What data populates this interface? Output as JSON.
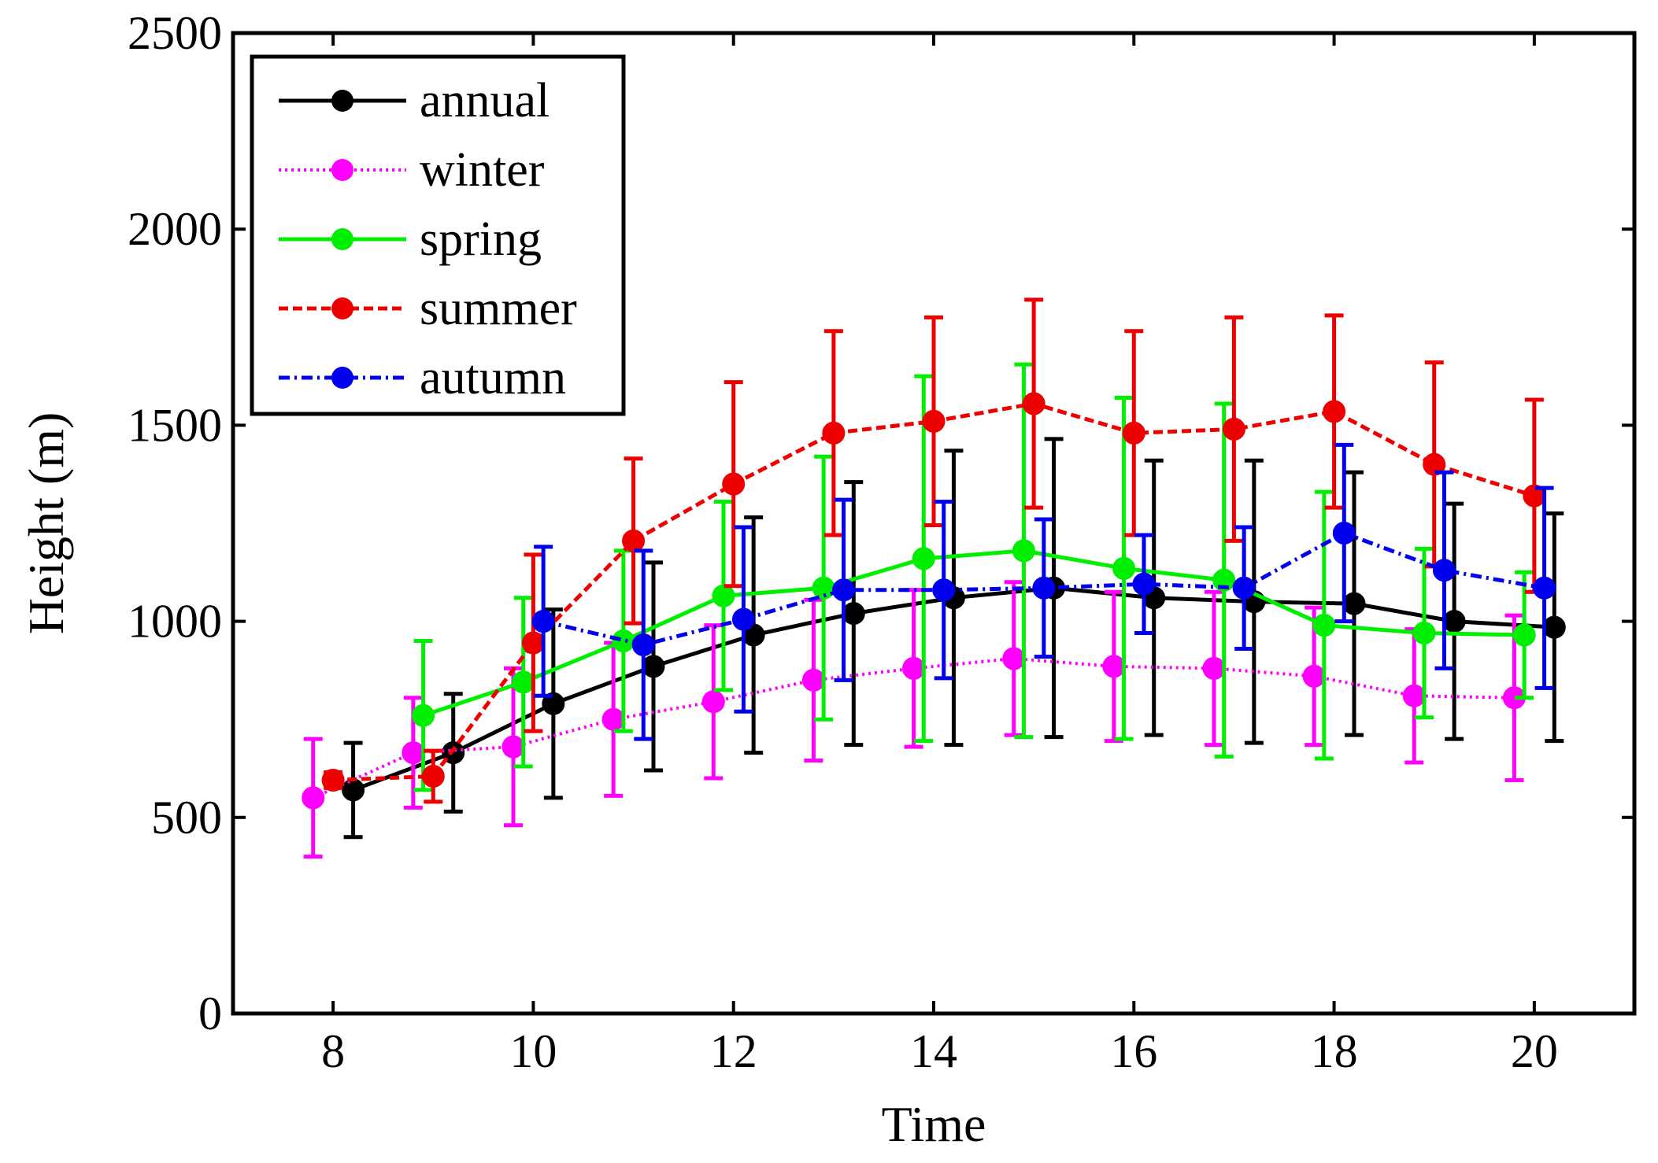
{
  "chart_data": {
    "type": "line",
    "title": "",
    "xlabel": "Time",
    "ylabel": "Height (m)",
    "xlim": [
      7,
      21
    ],
    "ylim": [
      0,
      2500
    ],
    "xticks": [
      8,
      10,
      12,
      14,
      16,
      18,
      20
    ],
    "yticks": [
      0,
      500,
      1000,
      1500,
      2000,
      2500
    ],
    "legend_position": "top-left",
    "grid": false,
    "series": [
      {
        "name": "annual",
        "color": "#000000",
        "line_style": "solid",
        "x": [
          8.2,
          9.2,
          10.2,
          11.2,
          12.2,
          13.2,
          14.2,
          15.2,
          16.2,
          17.2,
          18.2,
          19.2,
          20.2
        ],
        "y": [
          570,
          665,
          790,
          885,
          965,
          1020,
          1060,
          1085,
          1060,
          1050,
          1045,
          1000,
          985
        ],
        "err": [
          120,
          150,
          240,
          265,
          300,
          335,
          375,
          380,
          350,
          360,
          335,
          300,
          290
        ]
      },
      {
        "name": "winter",
        "color": "#ff00ff",
        "line_style": "dotted",
        "x": [
          7.8,
          8.8,
          9.8,
          10.8,
          11.8,
          12.8,
          13.8,
          14.8,
          15.8,
          16.8,
          17.8,
          18.8,
          19.8
        ],
        "y": [
          550,
          665,
          680,
          750,
          795,
          850,
          880,
          905,
          885,
          880,
          860,
          810,
          805
        ],
        "err": [
          150,
          140,
          200,
          195,
          195,
          205,
          200,
          195,
          190,
          195,
          175,
          170,
          210
        ]
      },
      {
        "name": "spring",
        "color": "#00ee00",
        "line_style": "solid",
        "x": [
          8.9,
          9.9,
          10.9,
          11.9,
          12.9,
          13.9,
          14.9,
          15.9,
          16.9,
          17.9,
          18.9,
          19.9
        ],
        "y": [
          760,
          845,
          950,
          1065,
          1085,
          1160,
          1180,
          1135,
          1105,
          990,
          970,
          965
        ],
        "err": [
          190,
          215,
          230,
          240,
          335,
          465,
          475,
          435,
          450,
          340,
          215,
          160
        ]
      },
      {
        "name": "summer",
        "color": "#ee0000",
        "line_style": "dashed",
        "x": [
          8,
          9,
          10,
          11,
          12,
          13,
          14,
          15,
          16,
          17,
          18,
          19,
          20
        ],
        "y": [
          595,
          605,
          945,
          1205,
          1350,
          1480,
          1510,
          1555,
          1480,
          1490,
          1535,
          1400,
          1320
        ],
        "err": [
          20,
          65,
          225,
          210,
          260,
          260,
          265,
          265,
          260,
          285,
          245,
          260,
          245
        ]
      },
      {
        "name": "autumn",
        "color": "#0000ee",
        "line_style": "dashdot",
        "x": [
          10.1,
          11.1,
          12.1,
          13.1,
          14.1,
          15.1,
          16.1,
          17.1,
          18.1,
          19.1,
          20.1
        ],
        "y": [
          1000,
          940,
          1005,
          1080,
          1080,
          1085,
          1095,
          1085,
          1225,
          1130,
          1085
        ],
        "err": [
          190,
          240,
          235,
          230,
          225,
          175,
          125,
          155,
          225,
          250,
          255
        ]
      }
    ]
  }
}
